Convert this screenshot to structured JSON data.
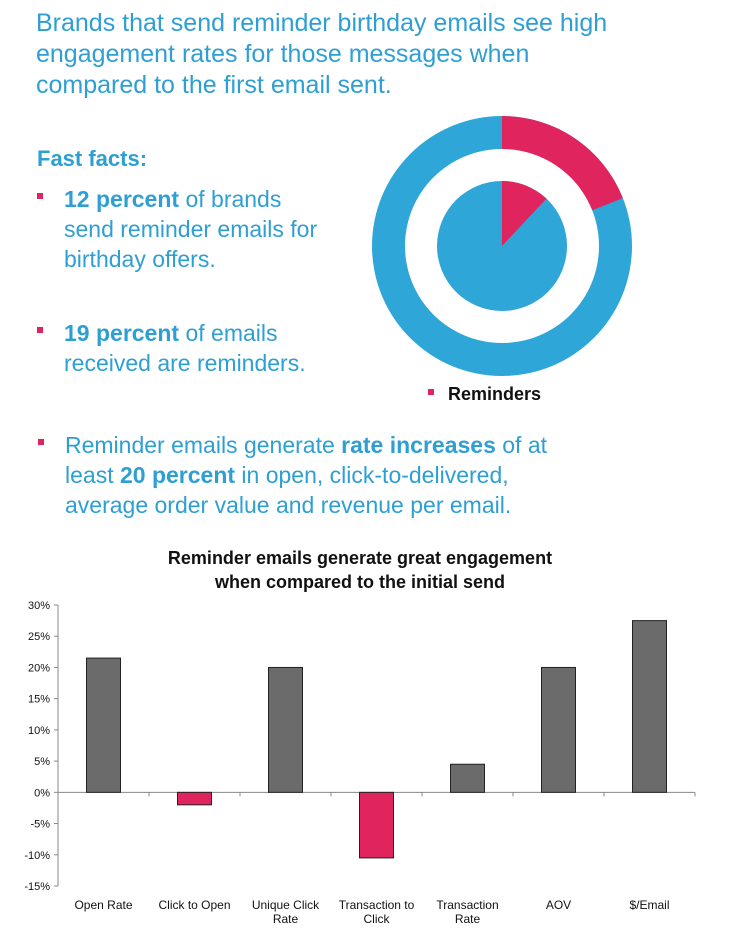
{
  "headline": {
    "line1": "Brands that send reminder birthday emails see high",
    "line2": "engagement rates for those messages when",
    "line3": "compared to the first email sent."
  },
  "facts": {
    "title": "Fast facts:",
    "fact1": {
      "bold": "12 percent",
      "text1": " of brands",
      "line2": "send reminder emails for",
      "line3": "birthday offers."
    },
    "fact2": {
      "bold": "19 percent",
      "text1": " of emails",
      "line2": "received are reminders."
    },
    "fact3": {
      "line1_pre": "Reminder emails generate ",
      "line1_bold": "rate increases",
      "line1_post": " of at",
      "line2_pre": "least ",
      "line2_bold": "20 percent",
      "line2_post": " in open, click-to-delivered,",
      "line3": "average order value and revenue per email."
    }
  },
  "donut": {
    "legend_label": "Reminders",
    "outer_reminder_fraction": 0.19,
    "inner_reminder_fraction": 0.12,
    "colors": {
      "main": "#2ea7d8",
      "reminder": "#e0245e"
    }
  },
  "chart_data": {
    "type": "bar",
    "title_line1": "Reminder emails generate great engagement",
    "title_line2": "when compared to the initial send",
    "categories": [
      [
        "Open Rate"
      ],
      [
        "Click to Open"
      ],
      [
        "Unique Click",
        "Rate"
      ],
      [
        "Transaction to",
        "Click"
      ],
      [
        "Transaction",
        "Rate"
      ],
      [
        "AOV"
      ],
      [
        "$/Email"
      ]
    ],
    "values": [
      21.5,
      -2,
      20,
      -10.5,
      4.5,
      20,
      27.5
    ],
    "ylim": [
      -15,
      30
    ],
    "yticks": [
      "30%",
      "25%",
      "20%",
      "15%",
      "10%",
      "5%",
      "0%",
      "-5%",
      "-10%",
      "-15%"
    ],
    "ytick_values": [
      30,
      25,
      20,
      15,
      10,
      5,
      0,
      -5,
      -10,
      -15
    ],
    "grid": false,
    "colors": {
      "positive": "#6b6b6b",
      "negative": "#e0245e"
    }
  }
}
